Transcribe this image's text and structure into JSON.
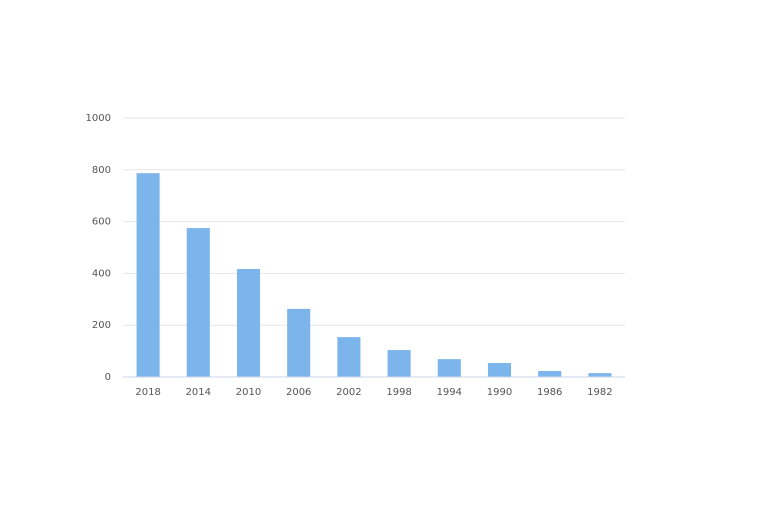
{
  "chart_data": {
    "type": "bar",
    "categories": [
      "2018",
      "2014",
      "2010",
      "2006",
      "2002",
      "1998",
      "1994",
      "1990",
      "1986",
      "1982"
    ],
    "values": [
      787,
      575,
      417,
      263,
      154,
      104,
      69,
      54,
      23,
      15
    ],
    "color": "#7cb5ec",
    "ylim": [
      0,
      1000
    ],
    "yticks": [
      0,
      200,
      400,
      600,
      800,
      1000
    ],
    "grid": true
  }
}
